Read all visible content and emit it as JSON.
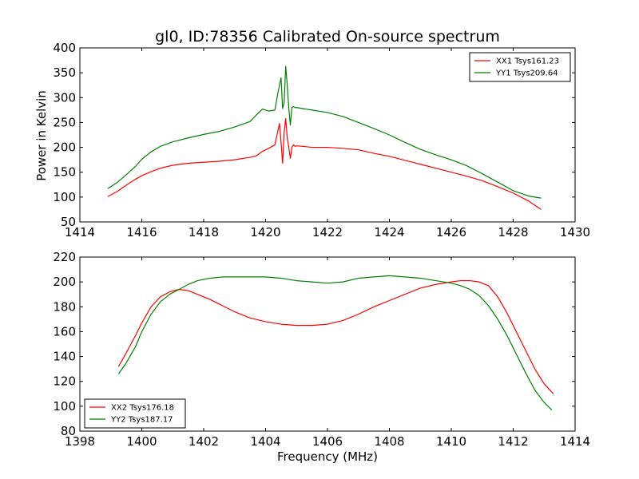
{
  "figure": {
    "title": "gl0, ID:78356 Calibrated On-source spectrum"
  },
  "chart_data": [
    {
      "type": "line",
      "title": "gl0, ID:78356 Calibrated On-source spectrum",
      "xlabel": "",
      "ylabel": "Power in Kelvin",
      "xlim": [
        1414,
        1430
      ],
      "ylim": [
        50,
        400
      ],
      "xticks": [
        "1414",
        "1416",
        "1418",
        "1420",
        "1422",
        "1424",
        "1426",
        "1428",
        "1430"
      ],
      "yticks": [
        "50",
        "100",
        "150",
        "200",
        "250",
        "300",
        "350",
        "400"
      ],
      "legend_position": "top-right",
      "grid": false,
      "series": [
        {
          "name": "XX1 Tsys161.23",
          "color": "#ff0000",
          "x": [
            1414.9,
            1415.2,
            1415.5,
            1415.8,
            1416.0,
            1416.3,
            1416.6,
            1417.0,
            1417.5,
            1418.0,
            1418.5,
            1419.0,
            1419.5,
            1419.7,
            1419.9,
            1420.1,
            1420.3,
            1420.45,
            1420.5,
            1420.55,
            1420.6,
            1420.65,
            1420.7,
            1420.75,
            1420.8,
            1420.85,
            1420.9,
            1420.95,
            1421.0,
            1421.2,
            1421.5,
            1422.0,
            1422.5,
            1423.0,
            1423.5,
            1424.0,
            1424.5,
            1425.0,
            1425.5,
            1426.0,
            1426.5,
            1427.0,
            1427.5,
            1428.0,
            1428.5,
            1428.9
          ],
          "y": [
            101,
            111,
            124,
            136,
            143,
            151,
            158,
            164,
            168,
            170,
            172,
            175,
            180,
            183,
            192,
            198,
            205,
            248,
            210,
            168,
            230,
            258,
            220,
            200,
            178,
            200,
            205,
            202,
            203,
            202,
            200,
            200,
            198,
            195,
            188,
            182,
            174,
            166,
            158,
            150,
            142,
            133,
            121,
            108,
            92,
            75
          ]
        },
        {
          "name": "YY1 Tsys209.64",
          "color": "#008000",
          "x": [
            1414.9,
            1415.2,
            1415.5,
            1415.8,
            1416.0,
            1416.3,
            1416.6,
            1417.0,
            1417.5,
            1418.0,
            1418.5,
            1419.0,
            1419.5,
            1419.7,
            1419.9,
            1420.1,
            1420.3,
            1420.4,
            1420.5,
            1420.55,
            1420.6,
            1420.65,
            1420.7,
            1420.75,
            1420.8,
            1420.85,
            1420.9,
            1420.95,
            1421.0,
            1421.2,
            1421.5,
            1422.0,
            1422.5,
            1423.0,
            1423.5,
            1424.0,
            1424.5,
            1425.0,
            1425.5,
            1426.0,
            1426.5,
            1427.0,
            1427.5,
            1428.0,
            1428.5,
            1428.9
          ],
          "y": [
            117,
            129,
            145,
            162,
            176,
            191,
            202,
            211,
            219,
            226,
            232,
            241,
            252,
            265,
            277,
            273,
            275,
            310,
            340,
            278,
            290,
            363,
            325,
            278,
            245,
            280,
            282,
            280,
            280,
            278,
            275,
            270,
            262,
            250,
            238,
            225,
            210,
            196,
            185,
            175,
            163,
            147,
            130,
            113,
            102,
            98
          ]
        }
      ]
    },
    {
      "type": "line",
      "title": "",
      "xlabel": "Frequency (MHz)",
      "ylabel": "",
      "xlim": [
        1398,
        1414
      ],
      "ylim": [
        80,
        220
      ],
      "xticks": [
        "1398",
        "1400",
        "1402",
        "1404",
        "1406",
        "1408",
        "1410",
        "1412",
        "1414"
      ],
      "yticks": [
        "80",
        "100",
        "120",
        "140",
        "160",
        "180",
        "200",
        "220"
      ],
      "legend_position": "bottom-left",
      "grid": false,
      "series": [
        {
          "name": "XX2 Tsys176.18",
          "color": "#ff0000",
          "x": [
            1399.25,
            1399.5,
            1399.8,
            1400.0,
            1400.3,
            1400.6,
            1400.9,
            1401.2,
            1401.5,
            1401.8,
            1402.2,
            1402.6,
            1403.0,
            1403.5,
            1404.0,
            1404.5,
            1405.0,
            1405.5,
            1406.0,
            1406.5,
            1407.0,
            1407.5,
            1408.0,
            1408.5,
            1409.0,
            1409.5,
            1410.0,
            1410.3,
            1410.6,
            1410.9,
            1411.2,
            1411.5,
            1411.8,
            1412.1,
            1412.4,
            1412.7,
            1413.0,
            1413.3
          ],
          "y": [
            132,
            143,
            157,
            167,
            180,
            188,
            192,
            194,
            193,
            190,
            186,
            181,
            176,
            171,
            168,
            166,
            165,
            165,
            166,
            169,
            174,
            180,
            185,
            190,
            195,
            198,
            200,
            201,
            201,
            200,
            197,
            188,
            175,
            160,
            145,
            130,
            118,
            110
          ]
        },
        {
          "name": "YY2 Tsys187.17",
          "color": "#008000",
          "x": [
            1399.25,
            1399.5,
            1399.8,
            1400.0,
            1400.3,
            1400.6,
            1400.9,
            1401.2,
            1401.5,
            1401.8,
            1402.2,
            1402.6,
            1403.0,
            1403.5,
            1404.0,
            1404.5,
            1405.0,
            1405.5,
            1406.0,
            1406.5,
            1407.0,
            1407.5,
            1408.0,
            1408.5,
            1409.0,
            1409.5,
            1410.0,
            1410.3,
            1410.6,
            1410.9,
            1411.2,
            1411.5,
            1411.8,
            1412.1,
            1412.4,
            1412.7,
            1413.0,
            1413.25
          ],
          "y": [
            126,
            135,
            148,
            160,
            174,
            184,
            190,
            194,
            198,
            201,
            203,
            204,
            204,
            204,
            204,
            203,
            201,
            200,
            199,
            200,
            203,
            204,
            205,
            204,
            203,
            201,
            199,
            197,
            194,
            189,
            181,
            170,
            157,
            142,
            127,
            113,
            103,
            97
          ]
        }
      ]
    }
  ]
}
